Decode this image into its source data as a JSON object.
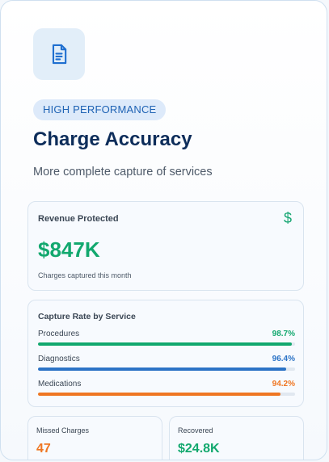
{
  "card": {
    "badge": "HIGH PERFORMANCE",
    "title": "Charge Accuracy",
    "subtitle": "More complete capture of services",
    "icon": "document-icon"
  },
  "revenue": {
    "label": "Revenue Protected",
    "value": "$847K",
    "note": "Charges captured this month",
    "icon": "$"
  },
  "capture": {
    "title": "Capture Rate by Service",
    "rows": [
      {
        "label": "Procedures",
        "pct_text": "98.7%",
        "pct": 98.7,
        "color": "#12a86e"
      },
      {
        "label": "Diagnostics",
        "pct_text": "96.4%",
        "pct": 96.4,
        "color": "#2c73c6"
      },
      {
        "label": "Medications",
        "pct_text": "94.2%",
        "pct": 94.2,
        "color": "#ef7622"
      }
    ]
  },
  "missed": {
    "label": "Missed Charges",
    "value": "47",
    "color": "#ef7622"
  },
  "recovered": {
    "label": "Recovered",
    "value": "$24.8K",
    "color": "#12a86e"
  },
  "colors": {
    "accent_blue": "#1f63b4",
    "title_navy": "#0d2d5a"
  }
}
